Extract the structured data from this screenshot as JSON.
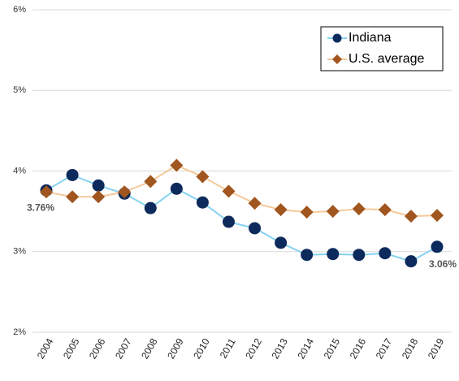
{
  "chart_data": {
    "type": "line",
    "categories": [
      "2004",
      "2005",
      "2006",
      "2007",
      "2008",
      "2009",
      "2010",
      "2011",
      "2012",
      "2013",
      "2014",
      "2015",
      "2016",
      "2017",
      "2018",
      "2019"
    ],
    "series": [
      {
        "name": "Indiana",
        "color": "#0d2a5c",
        "line_color": "#86d3f2",
        "marker": "circle",
        "values": [
          3.76,
          3.95,
          3.82,
          3.72,
          3.54,
          3.78,
          3.61,
          3.37,
          3.29,
          3.11,
          2.96,
          2.97,
          2.96,
          2.98,
          2.88,
          3.06
        ],
        "value_labels": [
          "3.76%",
          null,
          null,
          null,
          null,
          null,
          null,
          null,
          null,
          null,
          null,
          null,
          null,
          null,
          null,
          "3.06%"
        ]
      },
      {
        "name": "U.S. average",
        "color": "#a0561e",
        "line_color": "#f5c99a",
        "marker": "diamond",
        "values": [
          3.74,
          3.68,
          3.68,
          3.74,
          3.87,
          4.07,
          3.93,
          3.75,
          3.6,
          3.52,
          3.49,
          3.5,
          3.53,
          3.52,
          3.44,
          3.45
        ]
      }
    ],
    "ylim": [
      2,
      6
    ],
    "yticks": [
      {
        "value": 2,
        "label": "2%"
      },
      {
        "value": 3,
        "label": "3%"
      },
      {
        "value": 4,
        "label": "4%"
      },
      {
        "value": 5,
        "label": "5%"
      },
      {
        "value": 6,
        "label": "6%"
      }
    ],
    "grid": true,
    "legend": "top-right"
  }
}
